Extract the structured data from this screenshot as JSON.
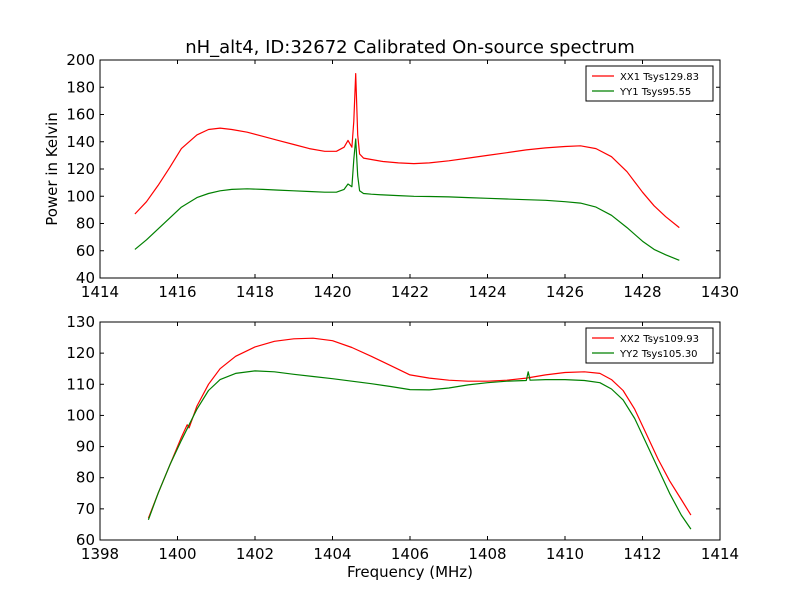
{
  "title": "nH_alt4, ID:32672 Calibrated On-source spectrum",
  "chart_data": [
    {
      "type": "line",
      "title": "nH_alt4, ID:32672 Calibrated On-source spectrum",
      "xlabel": "",
      "ylabel": "Power in Kelvin",
      "xlim": [
        1414,
        1430
      ],
      "ylim": [
        40,
        200
      ],
      "xticks": [
        1414,
        1416,
        1418,
        1420,
        1422,
        1424,
        1426,
        1428,
        1430
      ],
      "yticks": [
        40,
        60,
        80,
        100,
        120,
        140,
        160,
        180,
        200
      ],
      "legend_position": "top-right",
      "series": [
        {
          "name": "XX1 Tsys129.83",
          "color": "#ff0000",
          "x": [
            1414.9,
            1415.2,
            1415.5,
            1415.8,
            1416.1,
            1416.5,
            1416.8,
            1417.1,
            1417.4,
            1417.8,
            1418.2,
            1418.6,
            1419.0,
            1419.4,
            1419.8,
            1420.1,
            1420.3,
            1420.4,
            1420.5,
            1420.55,
            1420.6,
            1420.65,
            1420.7,
            1420.8,
            1421.0,
            1421.3,
            1421.7,
            1422.1,
            1422.5,
            1423.0,
            1423.5,
            1424.0,
            1424.5,
            1425.0,
            1425.5,
            1426.0,
            1426.4,
            1426.8,
            1427.2,
            1427.6,
            1428.0,
            1428.3,
            1428.6,
            1428.95
          ],
          "values": [
            87,
            96,
            108,
            121,
            135,
            145,
            149,
            150,
            149,
            147,
            144,
            141,
            138,
            135,
            133,
            133,
            136,
            141,
            136,
            155,
            190,
            145,
            131,
            128,
            127,
            125.5,
            124.5,
            124,
            124.5,
            126,
            128,
            130,
            132,
            134,
            135.5,
            136.5,
            137,
            135,
            129,
            118,
            103,
            93,
            85,
            77
          ]
        },
        {
          "name": "YY1 Tsys95.55",
          "color": "#008000",
          "x": [
            1414.9,
            1415.2,
            1415.5,
            1415.8,
            1416.1,
            1416.5,
            1416.8,
            1417.1,
            1417.4,
            1417.8,
            1418.2,
            1418.6,
            1419.0,
            1419.4,
            1419.8,
            1420.1,
            1420.3,
            1420.4,
            1420.5,
            1420.55,
            1420.6,
            1420.65,
            1420.7,
            1420.8,
            1421.0,
            1421.3,
            1421.7,
            1422.1,
            1422.5,
            1423.0,
            1423.5,
            1424.0,
            1424.5,
            1425.0,
            1425.5,
            1426.0,
            1426.4,
            1426.8,
            1427.2,
            1427.6,
            1428.0,
            1428.3,
            1428.6,
            1428.95
          ],
          "values": [
            61,
            68,
            76,
            84,
            92,
            99,
            102,
            104,
            105,
            105.5,
            105,
            104.5,
            104,
            103.5,
            103,
            103,
            105,
            109,
            107,
            127,
            142,
            115,
            104,
            102,
            101.5,
            101,
            100.5,
            100,
            99.8,
            99.5,
            99,
            98.5,
            98,
            97.5,
            97,
            96,
            95,
            92,
            86,
            77,
            67,
            61,
            57,
            53
          ]
        }
      ]
    },
    {
      "type": "line",
      "title": "",
      "xlabel": "Frequency (MHz)",
      "ylabel": "",
      "xlim": [
        1398,
        1414
      ],
      "ylim": [
        60,
        130
      ],
      "xticks": [
        1398,
        1400,
        1402,
        1404,
        1406,
        1408,
        1410,
        1412,
        1414
      ],
      "yticks": [
        60,
        70,
        80,
        90,
        100,
        110,
        120,
        130
      ],
      "legend_position": "top-right",
      "series": [
        {
          "name": "XX2 Tsys109.93",
          "color": "#ff0000",
          "x": [
            1399.25,
            1399.5,
            1399.8,
            1400.1,
            1400.25,
            1400.3,
            1400.5,
            1400.8,
            1401.1,
            1401.5,
            1402.0,
            1402.5,
            1403.0,
            1403.5,
            1404.0,
            1404.5,
            1405.0,
            1405.5,
            1406.0,
            1406.5,
            1407.0,
            1407.5,
            1408.0,
            1408.5,
            1409.0,
            1409.5,
            1410.0,
            1410.5,
            1410.9,
            1411.2,
            1411.5,
            1411.8,
            1412.1,
            1412.4,
            1412.7,
            1413.0,
            1413.25
          ],
          "values": [
            67,
            75,
            84,
            93,
            97,
            96,
            103,
            110,
            115,
            119,
            122,
            123.8,
            124.6,
            124.8,
            124,
            121.8,
            119,
            116,
            113,
            112,
            111.3,
            111,
            111,
            111.3,
            112,
            113,
            113.8,
            114,
            113.5,
            111.5,
            108,
            102,
            94,
            86,
            79,
            73,
            68
          ]
        },
        {
          "name": "YY2 Tsys105.30",
          "color": "#008000",
          "x": [
            1399.25,
            1399.5,
            1399.8,
            1400.1,
            1400.3,
            1400.5,
            1400.8,
            1401.1,
            1401.5,
            1402.0,
            1402.5,
            1403.0,
            1403.5,
            1404.0,
            1404.5,
            1405.0,
            1405.5,
            1406.0,
            1406.5,
            1407.0,
            1407.5,
            1408.0,
            1408.5,
            1409.0,
            1409.05,
            1409.1,
            1409.5,
            1410.0,
            1410.5,
            1410.9,
            1411.2,
            1411.5,
            1411.8,
            1412.1,
            1412.4,
            1412.7,
            1413.0,
            1413.25
          ],
          "values": [
            66.5,
            75,
            84,
            92,
            97,
            102,
            108,
            111.5,
            113.5,
            114.3,
            114,
            113.2,
            112.5,
            111.8,
            111,
            110.2,
            109.3,
            108.3,
            108.2,
            108.8,
            109.8,
            110.5,
            111,
            111.2,
            114,
            111.3,
            111.5,
            111.5,
            111.2,
            110.5,
            108.5,
            105,
            99,
            91,
            83,
            75,
            68,
            63.5
          ]
        }
      ]
    }
  ]
}
